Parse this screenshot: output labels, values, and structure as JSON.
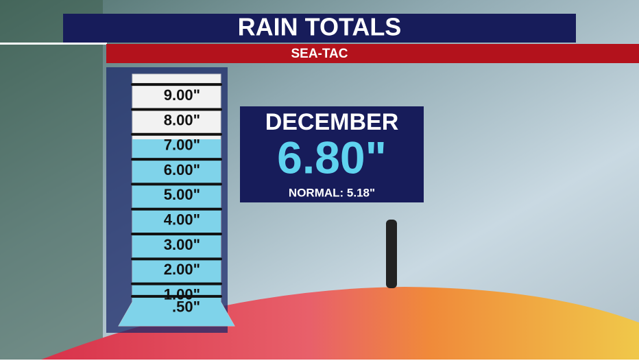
{
  "chart_data": {
    "type": "gauge",
    "title": "RAIN TOTALS",
    "subtitle": "SEA-TAC",
    "category": "DECEMBER",
    "value": 6.8,
    "value_label": "6.80\"",
    "annotation": "NORMAL: 5.18\"",
    "color": "#7fd3ea",
    "ylim": [
      0,
      9.5
    ],
    "yticks": [
      {
        "value": 9,
        "label": "9.00\""
      },
      {
        "value": 8,
        "label": "8.00\""
      },
      {
        "value": 7,
        "label": "7.00\""
      },
      {
        "value": 6,
        "label": "6.00\""
      },
      {
        "value": 5,
        "label": "5.00\""
      },
      {
        "value": 4,
        "label": "4.00\""
      },
      {
        "value": 3,
        "label": "3.00\""
      },
      {
        "value": 2,
        "label": "2.00\""
      },
      {
        "value": 1,
        "label": "1.00\""
      },
      {
        "value": 0.5,
        "label": ".50\""
      }
    ]
  }
}
